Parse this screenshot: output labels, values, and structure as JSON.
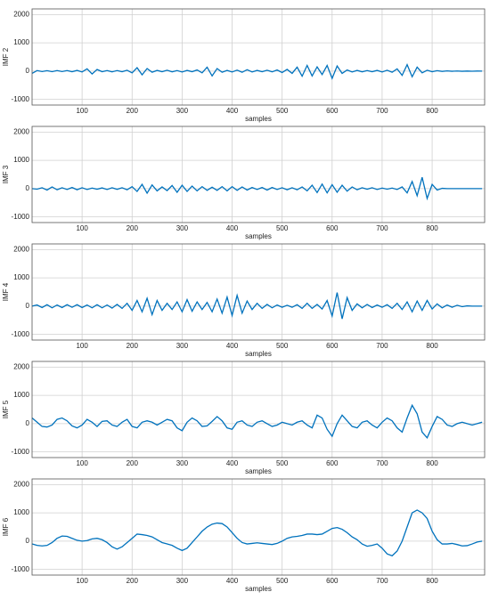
{
  "chart_data": [
    {
      "type": "line",
      "y_label": "IMF 2",
      "x_label": "samples",
      "color": "#0072bd",
      "grid": true,
      "xlim": [
        0,
        905
      ],
      "xticks": [
        100,
        200,
        300,
        400,
        500,
        600,
        700,
        800
      ],
      "ylim": [
        -1200,
        2200
      ],
      "yticks": [
        -1000,
        0,
        1000,
        2000
      ],
      "x": [
        0,
        10,
        20,
        30,
        40,
        50,
        60,
        70,
        80,
        90,
        100,
        110,
        120,
        130,
        140,
        150,
        160,
        170,
        180,
        190,
        200,
        210,
        220,
        230,
        240,
        250,
        260,
        270,
        280,
        290,
        300,
        310,
        320,
        330,
        340,
        350,
        360,
        370,
        380,
        390,
        400,
        410,
        420,
        430,
        440,
        450,
        460,
        470,
        480,
        490,
        500,
        510,
        520,
        530,
        540,
        550,
        560,
        570,
        580,
        590,
        600,
        610,
        620,
        630,
        640,
        650,
        660,
        670,
        680,
        690,
        700,
        710,
        720,
        730,
        740,
        750,
        760,
        770,
        780,
        790,
        800,
        810,
        820,
        830,
        840,
        850,
        860,
        870,
        880,
        890,
        900
      ],
      "values": [
        -80,
        20,
        -15,
        15,
        -20,
        20,
        -15,
        20,
        -20,
        25,
        -30,
        80,
        -100,
        60,
        -20,
        20,
        -25,
        20,
        -20,
        30,
        -60,
        120,
        -130,
        90,
        -40,
        25,
        -20,
        30,
        -25,
        20,
        -30,
        25,
        -20,
        40,
        -60,
        140,
        -170,
        90,
        -40,
        25,
        -30,
        35,
        -40,
        50,
        -30,
        25,
        -20,
        30,
        -25,
        40,
        -50,
        60,
        -80,
        140,
        -180,
        200,
        -170,
        150,
        -120,
        200,
        -260,
        180,
        -80,
        40,
        -30,
        25,
        -25,
        20,
        -20,
        25,
        -30,
        30,
        -40,
        80,
        -150,
        230,
        -200,
        140,
        -60,
        30,
        -20,
        15,
        -10,
        8,
        -5,
        5,
        -5,
        3,
        -3,
        2,
        0
      ]
    },
    {
      "type": "line",
      "y_label": "IMF 3",
      "x_label": "samples",
      "color": "#0072bd",
      "grid": true,
      "xlim": [
        0,
        905
      ],
      "xticks": [
        100,
        200,
        300,
        400,
        500,
        600,
        700,
        800
      ],
      "ylim": [
        -1200,
        2200
      ],
      "yticks": [
        -1000,
        0,
        1000,
        2000
      ],
      "x": [
        0,
        10,
        20,
        30,
        40,
        50,
        60,
        70,
        80,
        90,
        100,
        110,
        120,
        130,
        140,
        150,
        160,
        170,
        180,
        190,
        200,
        210,
        220,
        230,
        240,
        250,
        260,
        270,
        280,
        290,
        300,
        310,
        320,
        330,
        340,
        350,
        360,
        370,
        380,
        390,
        400,
        410,
        420,
        430,
        440,
        450,
        460,
        470,
        480,
        490,
        500,
        510,
        520,
        530,
        540,
        550,
        560,
        570,
        580,
        590,
        600,
        610,
        620,
        630,
        640,
        650,
        660,
        670,
        680,
        690,
        700,
        710,
        720,
        730,
        740,
        750,
        760,
        770,
        780,
        790,
        800,
        810,
        820,
        830,
        840,
        850,
        860,
        870,
        880,
        890,
        900
      ],
      "values": [
        0,
        -20,
        30,
        -50,
        60,
        -40,
        30,
        -30,
        40,
        -40,
        30,
        -30,
        20,
        -20,
        25,
        -30,
        30,
        -25,
        30,
        -40,
        70,
        -100,
        150,
        -160,
        130,
        -80,
        60,
        -70,
        110,
        -130,
        120,
        -100,
        90,
        -80,
        70,
        -60,
        50,
        -60,
        70,
        -80,
        70,
        -60,
        60,
        -50,
        40,
        -30,
        40,
        -50,
        40,
        -30,
        30,
        -40,
        30,
        -40,
        60,
        -80,
        120,
        -140,
        160,
        -150,
        140,
        -130,
        120,
        -90,
        60,
        -40,
        30,
        -20,
        30,
        -30,
        20,
        -20,
        20,
        -30,
        60,
        -150,
        250,
        -250,
        400,
        -350,
        150,
        -50,
        10,
        0,
        0,
        0,
        0,
        0,
        0,
        0,
        0
      ]
    },
    {
      "type": "line",
      "y_label": "IMF 4",
      "x_label": "samples",
      "color": "#0072bd",
      "grid": true,
      "xlim": [
        0,
        905
      ],
      "xticks": [
        100,
        200,
        300,
        400,
        500,
        600,
        700,
        800
      ],
      "ylim": [
        -1200,
        2200
      ],
      "yticks": [
        -1000,
        0,
        1000,
        2000
      ],
      "x": [
        0,
        10,
        20,
        30,
        40,
        50,
        60,
        70,
        80,
        90,
        100,
        110,
        120,
        130,
        140,
        150,
        160,
        170,
        180,
        190,
        200,
        210,
        220,
        230,
        240,
        250,
        260,
        270,
        280,
        290,
        300,
        310,
        320,
        330,
        340,
        350,
        360,
        370,
        380,
        390,
        400,
        410,
        420,
        430,
        440,
        450,
        460,
        470,
        480,
        490,
        500,
        510,
        520,
        530,
        540,
        550,
        560,
        570,
        580,
        590,
        600,
        610,
        620,
        630,
        640,
        650,
        660,
        670,
        680,
        690,
        700,
        710,
        720,
        730,
        740,
        750,
        760,
        770,
        780,
        790,
        800,
        810,
        820,
        830,
        840,
        850,
        860,
        870,
        880,
        890,
        900
      ],
      "values": [
        0,
        40,
        -50,
        50,
        -60,
        40,
        -50,
        50,
        -40,
        50,
        -50,
        40,
        -60,
        50,
        -60,
        40,
        -70,
        60,
        -80,
        100,
        -150,
        200,
        -200,
        280,
        -300,
        200,
        -150,
        100,
        -120,
        150,
        -200,
        230,
        -180,
        150,
        -120,
        130,
        -200,
        250,
        -250,
        320,
        -330,
        380,
        -250,
        180,
        -120,
        100,
        -80,
        60,
        -60,
        40,
        -40,
        30,
        -40,
        50,
        -80,
        100,
        -80,
        60,
        -100,
        200,
        -350,
        480,
        -450,
        300,
        -150,
        80,
        -60,
        60,
        -50,
        40,
        -40,
        50,
        -80,
        100,
        -120,
        150,
        -200,
        180,
        -150,
        200,
        -100,
        80,
        -60,
        40,
        -40,
        30,
        -20,
        10,
        0,
        0,
        0
      ]
    },
    {
      "type": "line",
      "y_label": "IMF 5",
      "x_label": "samples",
      "color": "#0072bd",
      "grid": true,
      "xlim": [
        0,
        905
      ],
      "xticks": [
        100,
        200,
        300,
        400,
        500,
        600,
        700,
        800
      ],
      "ylim": [
        -1200,
        2200
      ],
      "yticks": [
        -1000,
        0,
        1000,
        2000
      ],
      "x": [
        0,
        10,
        20,
        30,
        40,
        50,
        60,
        70,
        80,
        90,
        100,
        110,
        120,
        130,
        140,
        150,
        160,
        170,
        180,
        190,
        200,
        210,
        220,
        230,
        240,
        250,
        260,
        270,
        280,
        290,
        300,
        310,
        320,
        330,
        340,
        350,
        360,
        370,
        380,
        390,
        400,
        410,
        420,
        430,
        440,
        450,
        460,
        470,
        480,
        490,
        500,
        510,
        520,
        530,
        540,
        550,
        560,
        570,
        580,
        590,
        600,
        610,
        620,
        630,
        640,
        650,
        660,
        670,
        680,
        690,
        700,
        710,
        720,
        730,
        740,
        750,
        760,
        770,
        780,
        790,
        800,
        810,
        820,
        830,
        840,
        850,
        860,
        870,
        880,
        890,
        900
      ],
      "values": [
        200,
        50,
        -100,
        -120,
        -50,
        150,
        200,
        100,
        -80,
        -150,
        -50,
        150,
        50,
        -100,
        80,
        100,
        -50,
        -100,
        50,
        150,
        -100,
        -150,
        50,
        100,
        50,
        -50,
        50,
        150,
        100,
        -150,
        -250,
        50,
        200,
        100,
        -100,
        -80,
        80,
        250,
        100,
        -150,
        -200,
        50,
        100,
        -50,
        -100,
        50,
        100,
        0,
        -100,
        -50,
        50,
        0,
        -50,
        50,
        100,
        -50,
        -150,
        300,
        200,
        -200,
        -450,
        0,
        300,
        100,
        -100,
        -150,
        50,
        100,
        -50,
        -150,
        50,
        200,
        100,
        -150,
        -300,
        200,
        650,
        350,
        -300,
        -500,
        -100,
        250,
        150,
        -50,
        -100,
        0,
        50,
        0,
        -50,
        0,
        50
      ]
    },
    {
      "type": "line",
      "y_label": "IMF 6",
      "x_label": "samples",
      "color": "#0072bd",
      "grid": true,
      "xlim": [
        0,
        905
      ],
      "xticks": [
        100,
        200,
        300,
        400,
        500,
        600,
        700,
        800
      ],
      "ylim": [
        -1200,
        2200
      ],
      "yticks": [
        -1000,
        0,
        1000,
        2000
      ],
      "x": [
        0,
        10,
        20,
        30,
        40,
        50,
        60,
        70,
        80,
        90,
        100,
        110,
        120,
        130,
        140,
        150,
        160,
        170,
        180,
        190,
        200,
        210,
        220,
        230,
        240,
        250,
        260,
        270,
        280,
        290,
        300,
        310,
        320,
        330,
        340,
        350,
        360,
        370,
        380,
        390,
        400,
        410,
        420,
        430,
        440,
        450,
        460,
        470,
        480,
        490,
        500,
        510,
        520,
        530,
        540,
        550,
        560,
        570,
        580,
        590,
        600,
        610,
        620,
        630,
        640,
        650,
        660,
        670,
        680,
        690,
        700,
        710,
        720,
        730,
        740,
        750,
        760,
        770,
        780,
        790,
        800,
        810,
        820,
        830,
        840,
        850,
        860,
        870,
        880,
        890,
        900
      ],
      "values": [
        -100,
        -150,
        -170,
        -150,
        -50,
        100,
        180,
        170,
        100,
        30,
        0,
        20,
        80,
        100,
        50,
        -50,
        -200,
        -280,
        -200,
        -50,
        100,
        250,
        230,
        200,
        150,
        50,
        -50,
        -100,
        -150,
        -250,
        -330,
        -250,
        -50,
        150,
        350,
        500,
        600,
        640,
        620,
        500,
        300,
        100,
        -50,
        -100,
        -80,
        -60,
        -80,
        -100,
        -120,
        -80,
        0,
        100,
        150,
        170,
        200,
        250,
        250,
        230,
        250,
        350,
        450,
        480,
        420,
        300,
        150,
        50,
        -100,
        -180,
        -150,
        -100,
        -250,
        -450,
        -520,
        -350,
        0,
        500,
        1000,
        1100,
        1000,
        800,
        350,
        50,
        -100,
        -100,
        -80,
        -120,
        -170,
        -160,
        -100,
        -30,
        0
      ]
    }
  ]
}
